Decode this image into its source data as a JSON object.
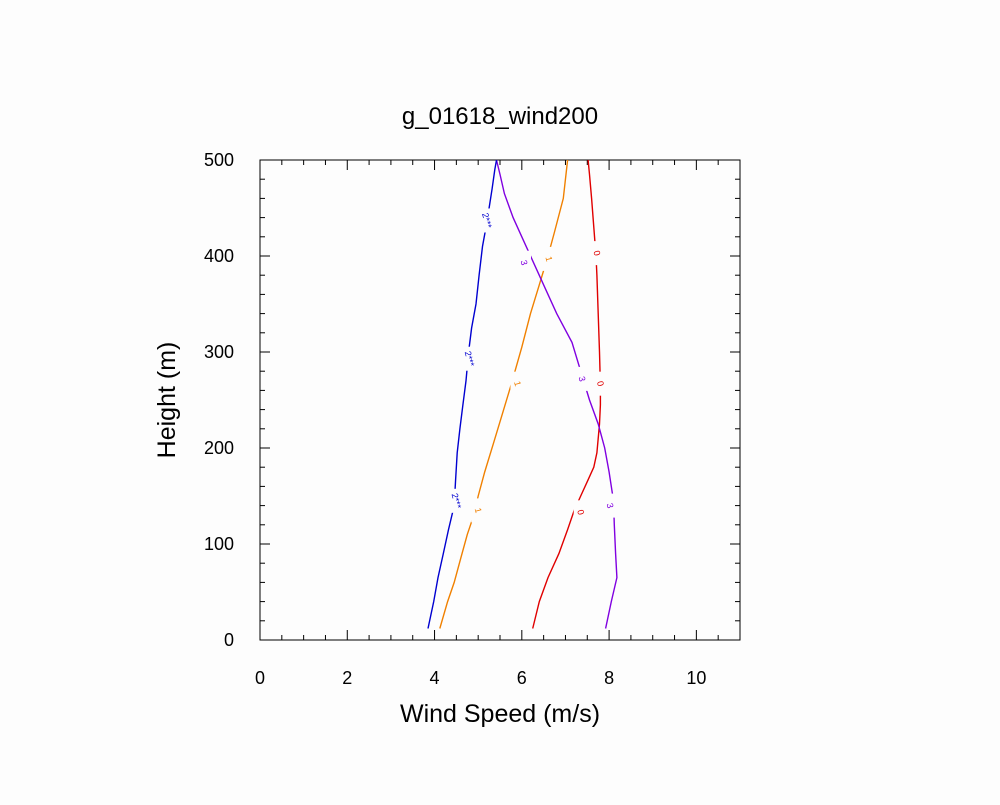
{
  "chart_data": {
    "type": "line",
    "title": "g_01618_wind200",
    "xlabel": "Wind Speed (m/s)",
    "ylabel": "Height (m)",
    "xlim": [
      0,
      11
    ],
    "ylim": [
      0,
      500
    ],
    "xticks": [
      0,
      2,
      4,
      6,
      8,
      10
    ],
    "yticks": [
      0,
      100,
      200,
      300,
      400,
      500
    ],
    "xtick_labels": [
      "0",
      "2",
      "4",
      "6",
      "8",
      "10"
    ],
    "ytick_labels": [
      "0",
      "100",
      "200",
      "300",
      "400",
      "500"
    ],
    "grid": false,
    "legend": "none",
    "series": [
      {
        "label": "0",
        "color": "#e00000",
        "x": [
          6.25,
          6.4,
          6.6,
          6.85,
          7.05,
          7.2,
          7.35,
          7.5,
          7.65,
          7.72,
          7.75,
          7.78,
          7.8,
          7.8,
          7.78,
          7.75,
          7.72,
          7.7,
          7.65,
          7.6,
          7.55,
          7.52
        ],
        "y": [
          12,
          40,
          65,
          90,
          115,
          135,
          150,
          165,
          180,
          195,
          210,
          225,
          245,
          265,
          300,
          340,
          380,
          400,
          430,
          460,
          485,
          500
        ],
        "label_positions": [
          {
            "x": 7.35,
            "y": 133
          },
          {
            "x": 7.8,
            "y": 267
          },
          {
            "x": 7.72,
            "y": 403
          }
        ]
      },
      {
        "label": "1",
        "color": "#f08000",
        "x": [
          4.12,
          4.3,
          4.45,
          4.6,
          4.75,
          4.9,
          5.0,
          5.15,
          5.35,
          5.55,
          5.75,
          6.0,
          6.2,
          6.4,
          6.6,
          6.75,
          6.95,
          7.05
        ],
        "y": [
          12,
          40,
          60,
          85,
          110,
          130,
          150,
          175,
          205,
          235,
          265,
          305,
          340,
          370,
          400,
          425,
          460,
          500
        ],
        "label_positions": [
          {
            "x": 5.0,
            "y": 135
          },
          {
            "x": 5.9,
            "y": 267
          },
          {
            "x": 6.62,
            "y": 397
          }
        ]
      },
      {
        "label": "3",
        "color": "#8000e0",
        "x": [
          7.92,
          8.05,
          8.18,
          8.15,
          8.12,
          8.1,
          8.0,
          7.9,
          7.75,
          7.55,
          7.35,
          7.15,
          6.8,
          6.5,
          6.25,
          6.0,
          5.8,
          5.6,
          5.5,
          5.42
        ],
        "y": [
          12,
          40,
          65,
          90,
          120,
          145,
          175,
          200,
          225,
          250,
          280,
          310,
          340,
          370,
          395,
          420,
          440,
          465,
          485,
          500
        ],
        "label_positions": [
          {
            "x": 8.02,
            "y": 140
          },
          {
            "x": 7.38,
            "y": 272
          },
          {
            "x": 6.05,
            "y": 393
          }
        ]
      },
      {
        "label": "2***",
        "color": "#0000d0",
        "x": [
          3.85,
          3.98,
          4.08,
          4.2,
          4.32,
          4.45,
          4.48,
          4.52,
          4.58,
          4.65,
          4.72,
          4.78,
          4.85,
          4.95,
          5.02,
          5.1,
          5.18,
          5.25,
          5.32,
          5.38,
          5.42
        ],
        "y": [
          12,
          40,
          65,
          90,
          115,
          140,
          165,
          195,
          220,
          245,
          270,
          300,
          325,
          350,
          380,
          410,
          430,
          450,
          470,
          490,
          500
        ],
        "label_positions": [
          {
            "x": 4.5,
            "y": 145
          },
          {
            "x": 4.8,
            "y": 293
          },
          {
            "x": 5.2,
            "y": 437
          }
        ]
      }
    ]
  }
}
